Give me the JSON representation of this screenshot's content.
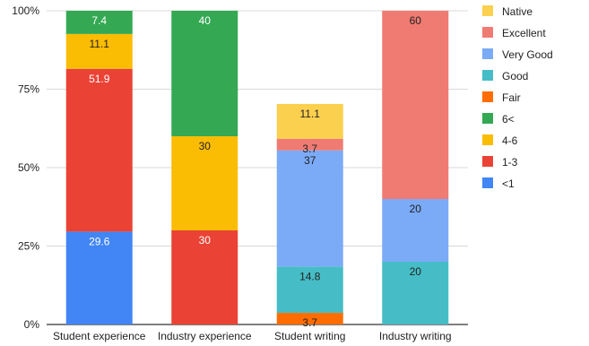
{
  "chart_data": {
    "type": "bar",
    "stacked": true,
    "normalized": true,
    "categories": [
      "Student experience",
      "Industry experience",
      "Student writing",
      "Industry writing"
    ],
    "ylim": [
      0,
      100
    ],
    "yticks": [
      0,
      25,
      50,
      75,
      100
    ],
    "ytick_labels": [
      "0%",
      "25%",
      "50%",
      "75%",
      "100%"
    ],
    "grid": "horizontal",
    "legend_position": "right",
    "series": [
      {
        "name": "<1",
        "color": "#4285f4",
        "label_color": "#ffffff",
        "values": [
          29.6,
          0,
          0,
          0
        ]
      },
      {
        "name": "1-3",
        "color": "#ea4335",
        "label_color": "#ffffff",
        "values": [
          51.9,
          30,
          0,
          0
        ]
      },
      {
        "name": "4-6",
        "color": "#fbbc04",
        "label_color": "#222222",
        "values": [
          11.1,
          30,
          0,
          0
        ]
      },
      {
        "name": "6<",
        "color": "#34a853",
        "label_color": "#ffffff",
        "values": [
          7.4,
          40,
          0,
          0
        ]
      },
      {
        "name": "Fair",
        "color": "#ff6d01",
        "label_color": "#222222",
        "values": [
          0,
          0,
          3.7,
          0
        ]
      },
      {
        "name": "Good",
        "color": "#46bdc6",
        "label_color": "#222222",
        "values": [
          0,
          0,
          14.8,
          20
        ]
      },
      {
        "name": "Very Good",
        "color": "#7baaf7",
        "label_color": "#222222",
        "values": [
          0,
          0,
          37,
          20
        ]
      },
      {
        "name": "Excellent",
        "color": "#f07b72",
        "label_color": "#222222",
        "values": [
          0,
          0,
          3.7,
          60
        ]
      },
      {
        "name": "Native",
        "color": "#fcd04f",
        "label_color": "#222222",
        "values": [
          0,
          0,
          11.1,
          0
        ]
      }
    ],
    "legend_order": [
      "Native",
      "Excellent",
      "Very Good",
      "Good",
      "Fair",
      "6<",
      "4-6",
      "1-3",
      "<1"
    ]
  }
}
